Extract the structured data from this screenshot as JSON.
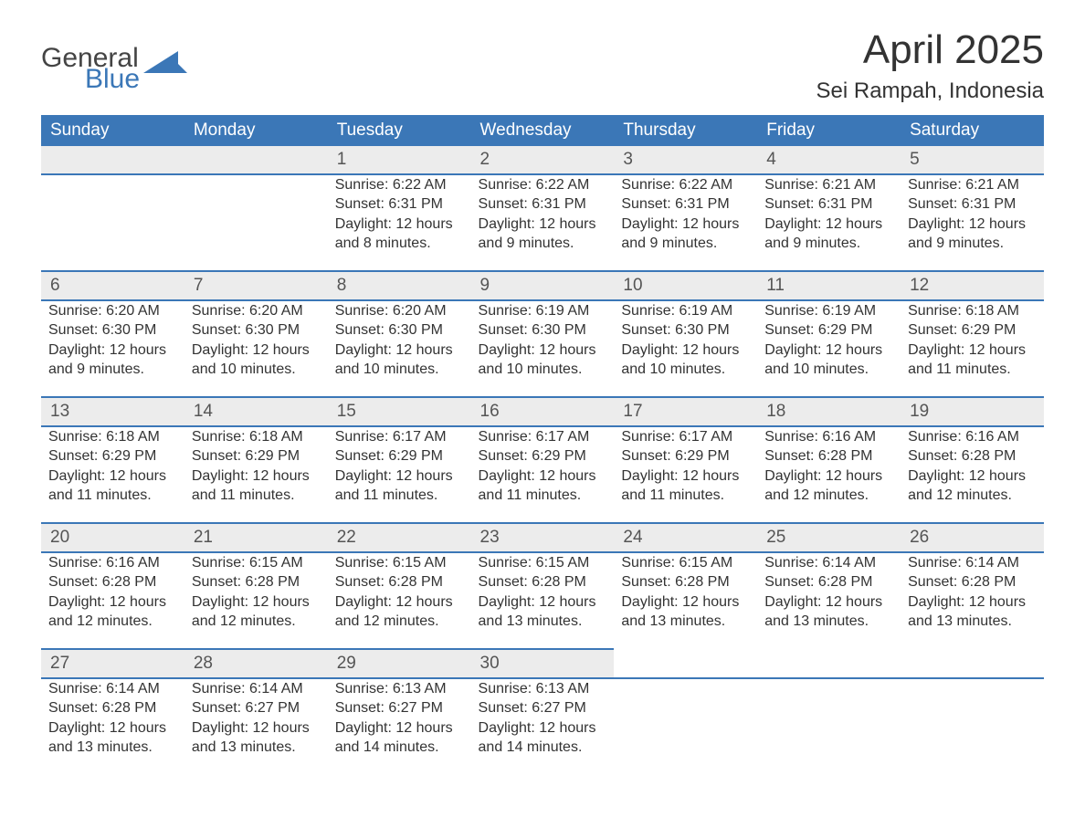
{
  "logo": {
    "line1": "General",
    "line2": "Blue"
  },
  "title": "April 2025",
  "location": "Sei Rampah, Indonesia",
  "colors": {
    "header_bg": "#3b77b7",
    "header_text": "#ffffff",
    "daynum_bg": "#ececec",
    "row_border": "#3b77b7",
    "body_text": "#333333",
    "page_bg": "#ffffff"
  },
  "typography": {
    "title_fontsize": 44,
    "location_fontsize": 24,
    "header_fontsize": 19,
    "daynum_fontsize": 19,
    "body_fontsize": 16
  },
  "weekdays": [
    "Sunday",
    "Monday",
    "Tuesday",
    "Wednesday",
    "Thursday",
    "Friday",
    "Saturday"
  ],
  "weeks": [
    [
      null,
      null,
      {
        "day": "1",
        "sunrise": "Sunrise: 6:22 AM",
        "sunset": "Sunset: 6:31 PM",
        "daylight": "Daylight: 12 hours and 8 minutes."
      },
      {
        "day": "2",
        "sunrise": "Sunrise: 6:22 AM",
        "sunset": "Sunset: 6:31 PM",
        "daylight": "Daylight: 12 hours and 9 minutes."
      },
      {
        "day": "3",
        "sunrise": "Sunrise: 6:22 AM",
        "sunset": "Sunset: 6:31 PM",
        "daylight": "Daylight: 12 hours and 9 minutes."
      },
      {
        "day": "4",
        "sunrise": "Sunrise: 6:21 AM",
        "sunset": "Sunset: 6:31 PM",
        "daylight": "Daylight: 12 hours and 9 minutes."
      },
      {
        "day": "5",
        "sunrise": "Sunrise: 6:21 AM",
        "sunset": "Sunset: 6:31 PM",
        "daylight": "Daylight: 12 hours and 9 minutes."
      }
    ],
    [
      {
        "day": "6",
        "sunrise": "Sunrise: 6:20 AM",
        "sunset": "Sunset: 6:30 PM",
        "daylight": "Daylight: 12 hours and 9 minutes."
      },
      {
        "day": "7",
        "sunrise": "Sunrise: 6:20 AM",
        "sunset": "Sunset: 6:30 PM",
        "daylight": "Daylight: 12 hours and 10 minutes."
      },
      {
        "day": "8",
        "sunrise": "Sunrise: 6:20 AM",
        "sunset": "Sunset: 6:30 PM",
        "daylight": "Daylight: 12 hours and 10 minutes."
      },
      {
        "day": "9",
        "sunrise": "Sunrise: 6:19 AM",
        "sunset": "Sunset: 6:30 PM",
        "daylight": "Daylight: 12 hours and 10 minutes."
      },
      {
        "day": "10",
        "sunrise": "Sunrise: 6:19 AM",
        "sunset": "Sunset: 6:30 PM",
        "daylight": "Daylight: 12 hours and 10 minutes."
      },
      {
        "day": "11",
        "sunrise": "Sunrise: 6:19 AM",
        "sunset": "Sunset: 6:29 PM",
        "daylight": "Daylight: 12 hours and 10 minutes."
      },
      {
        "day": "12",
        "sunrise": "Sunrise: 6:18 AM",
        "sunset": "Sunset: 6:29 PM",
        "daylight": "Daylight: 12 hours and 11 minutes."
      }
    ],
    [
      {
        "day": "13",
        "sunrise": "Sunrise: 6:18 AM",
        "sunset": "Sunset: 6:29 PM",
        "daylight": "Daylight: 12 hours and 11 minutes."
      },
      {
        "day": "14",
        "sunrise": "Sunrise: 6:18 AM",
        "sunset": "Sunset: 6:29 PM",
        "daylight": "Daylight: 12 hours and 11 minutes."
      },
      {
        "day": "15",
        "sunrise": "Sunrise: 6:17 AM",
        "sunset": "Sunset: 6:29 PM",
        "daylight": "Daylight: 12 hours and 11 minutes."
      },
      {
        "day": "16",
        "sunrise": "Sunrise: 6:17 AM",
        "sunset": "Sunset: 6:29 PM",
        "daylight": "Daylight: 12 hours and 11 minutes."
      },
      {
        "day": "17",
        "sunrise": "Sunrise: 6:17 AM",
        "sunset": "Sunset: 6:29 PM",
        "daylight": "Daylight: 12 hours and 11 minutes."
      },
      {
        "day": "18",
        "sunrise": "Sunrise: 6:16 AM",
        "sunset": "Sunset: 6:28 PM",
        "daylight": "Daylight: 12 hours and 12 minutes."
      },
      {
        "day": "19",
        "sunrise": "Sunrise: 6:16 AM",
        "sunset": "Sunset: 6:28 PM",
        "daylight": "Daylight: 12 hours and 12 minutes."
      }
    ],
    [
      {
        "day": "20",
        "sunrise": "Sunrise: 6:16 AM",
        "sunset": "Sunset: 6:28 PM",
        "daylight": "Daylight: 12 hours and 12 minutes."
      },
      {
        "day": "21",
        "sunrise": "Sunrise: 6:15 AM",
        "sunset": "Sunset: 6:28 PM",
        "daylight": "Daylight: 12 hours and 12 minutes."
      },
      {
        "day": "22",
        "sunrise": "Sunrise: 6:15 AM",
        "sunset": "Sunset: 6:28 PM",
        "daylight": "Daylight: 12 hours and 12 minutes."
      },
      {
        "day": "23",
        "sunrise": "Sunrise: 6:15 AM",
        "sunset": "Sunset: 6:28 PM",
        "daylight": "Daylight: 12 hours and 13 minutes."
      },
      {
        "day": "24",
        "sunrise": "Sunrise: 6:15 AM",
        "sunset": "Sunset: 6:28 PM",
        "daylight": "Daylight: 12 hours and 13 minutes."
      },
      {
        "day": "25",
        "sunrise": "Sunrise: 6:14 AM",
        "sunset": "Sunset: 6:28 PM",
        "daylight": "Daylight: 12 hours and 13 minutes."
      },
      {
        "day": "26",
        "sunrise": "Sunrise: 6:14 AM",
        "sunset": "Sunset: 6:28 PM",
        "daylight": "Daylight: 12 hours and 13 minutes."
      }
    ],
    [
      {
        "day": "27",
        "sunrise": "Sunrise: 6:14 AM",
        "sunset": "Sunset: 6:28 PM",
        "daylight": "Daylight: 12 hours and 13 minutes."
      },
      {
        "day": "28",
        "sunrise": "Sunrise: 6:14 AM",
        "sunset": "Sunset: 6:27 PM",
        "daylight": "Daylight: 12 hours and 13 minutes."
      },
      {
        "day": "29",
        "sunrise": "Sunrise: 6:13 AM",
        "sunset": "Sunset: 6:27 PM",
        "daylight": "Daylight: 12 hours and 14 minutes."
      },
      {
        "day": "30",
        "sunrise": "Sunrise: 6:13 AM",
        "sunset": "Sunset: 6:27 PM",
        "daylight": "Daylight: 12 hours and 14 minutes."
      },
      null,
      null,
      null
    ]
  ]
}
